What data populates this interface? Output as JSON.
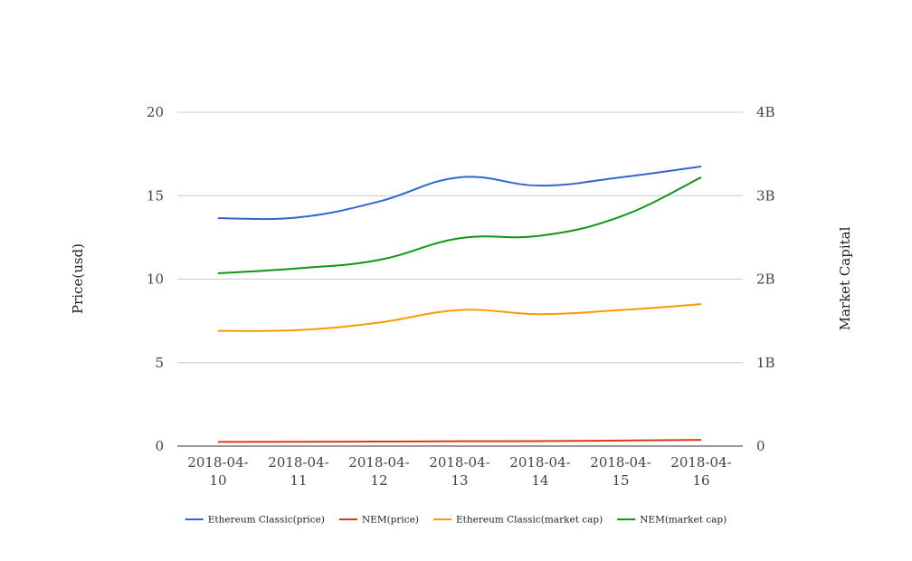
{
  "chart_data": {
    "type": "line",
    "categories": [
      "2018-04-10",
      "2018-04-11",
      "2018-04-12",
      "2018-04-13",
      "2018-04-14",
      "2018-04-15",
      "2018-04-16"
    ],
    "category_lines": [
      [
        "2018-04-",
        "10"
      ],
      [
        "2018-04-",
        "11"
      ],
      [
        "2018-04-",
        "12"
      ],
      [
        "2018-04-",
        "13"
      ],
      [
        "2018-04-",
        "14"
      ],
      [
        "2018-04-",
        "15"
      ],
      [
        "2018-04-",
        "16"
      ]
    ],
    "ylabel": "Price(usd)",
    "y2label": "Market Capital",
    "ylim": [
      0,
      20
    ],
    "y2lim": [
      0,
      4000000000
    ],
    "yticks": [
      0,
      5,
      10,
      15,
      20
    ],
    "y2ticks": [
      {
        "value": 0,
        "label": "0"
      },
      {
        "value": 1000000000,
        "label": "1B"
      },
      {
        "value": 2000000000,
        "label": "2B"
      },
      {
        "value": 3000000000,
        "label": "3B"
      },
      {
        "value": 4000000000,
        "label": "4B"
      }
    ],
    "grid": true,
    "legend_position": "bottom",
    "series": [
      {
        "name": "Ethereum Classic(price)",
        "axis": "left",
        "color": "#3366cc",
        "values": [
          13.65,
          13.7,
          14.65,
          16.1,
          15.6,
          16.1,
          16.75
        ]
      },
      {
        "name": "NEM(price)",
        "axis": "left",
        "color": "#dc3912",
        "values": [
          0.25,
          0.26,
          0.27,
          0.29,
          0.3,
          0.33,
          0.37
        ]
      },
      {
        "name": "Ethereum Classic(market cap)",
        "axis": "right",
        "color": "#ff9900",
        "values": [
          1380000000,
          1390000000,
          1480000000,
          1630000000,
          1580000000,
          1630000000,
          1700000000
        ]
      },
      {
        "name": "NEM(market cap)",
        "axis": "right",
        "color": "#109618",
        "values": [
          2070000000,
          2130000000,
          2230000000,
          2490000000,
          2520000000,
          2750000000,
          3220000000
        ]
      }
    ]
  }
}
